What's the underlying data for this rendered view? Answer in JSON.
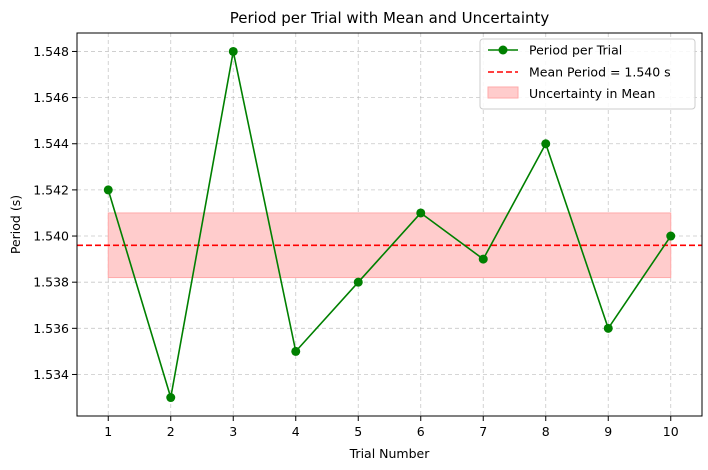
{
  "chart_data": {
    "type": "line",
    "title": "Period per Trial with Mean and Uncertainty",
    "xlabel": "Trial Number",
    "ylabel": "Period (s)",
    "x": [
      1,
      2,
      3,
      4,
      5,
      6,
      7,
      8,
      9,
      10
    ],
    "xlim": [
      0.5,
      10.5
    ],
    "ylim": [
      1.5322,
      1.5488
    ],
    "yticks": [
      "1.534",
      "1.536",
      "1.538",
      "1.540",
      "1.542",
      "1.544",
      "1.546",
      "1.548"
    ],
    "ytick_values": [
      1.534,
      1.536,
      1.538,
      1.54,
      1.542,
      1.544,
      1.546,
      1.548
    ],
    "grid": true,
    "legend_position": "top-right",
    "series": [
      {
        "name": "Period per Trial",
        "color": "#008000",
        "marker": "circle",
        "values": [
          1.542,
          1.533,
          1.548,
          1.535,
          1.538,
          1.541,
          1.539,
          1.544,
          1.536,
          1.54
        ]
      }
    ],
    "mean_line": {
      "label": "Mean Period = 1.540 s",
      "value": 1.5396,
      "color": "#ff0000",
      "style": "dashed"
    },
    "uncertainty_band": {
      "label": "Uncertainty in Mean",
      "lower": 1.5382,
      "upper": 1.541,
      "x_start": 1,
      "x_end": 10,
      "color": "#ffcccc"
    }
  }
}
